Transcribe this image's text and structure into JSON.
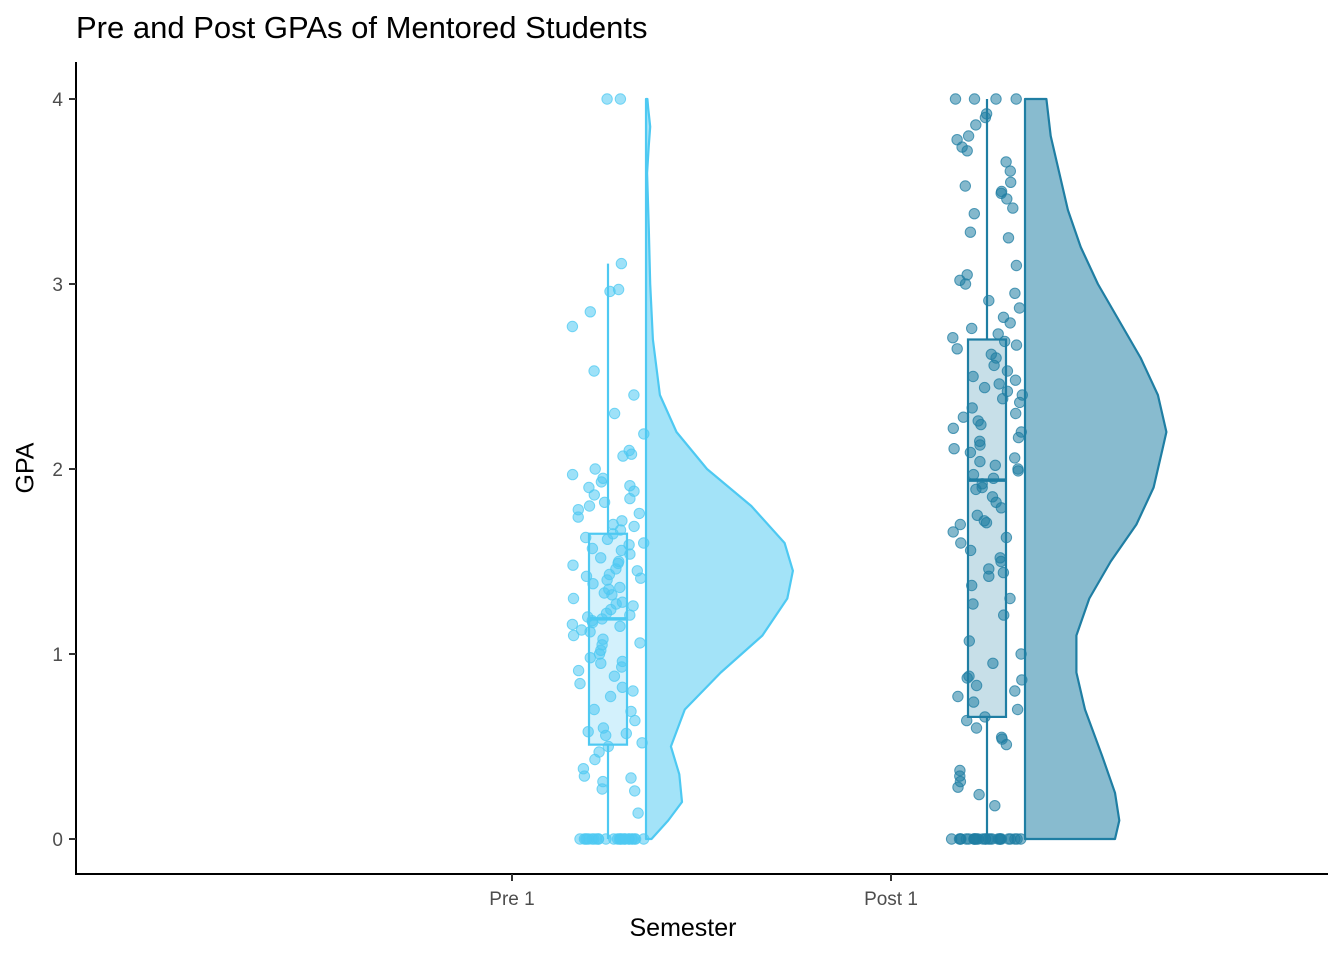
{
  "chart_data": {
    "type": "raincloud",
    "title": "Pre and Post GPAs of Mentored Students",
    "xlabel": "Semester",
    "ylabel": "GPA",
    "categories": [
      "Pre 1",
      "Post 1"
    ],
    "ylim": [
      -0.19,
      4.19
    ],
    "yticks": [
      0,
      1,
      2,
      3,
      4
    ],
    "grid": false,
    "legend": "none",
    "series": [
      {
        "category": "Pre 1",
        "color": "#4ec9f2",
        "fill": "#a3e3f8",
        "box": {
          "min": 0,
          "q1": 0.51,
          "median": 1.19,
          "q3": 1.65,
          "max": 3.11
        },
        "density": [
          [
            0,
            0.02
          ],
          [
            0.1,
            0.08
          ],
          [
            0.2,
            0.13
          ],
          [
            0.35,
            0.12
          ],
          [
            0.5,
            0.09
          ],
          [
            0.7,
            0.14
          ],
          [
            0.9,
            0.27
          ],
          [
            1.1,
            0.42
          ],
          [
            1.3,
            0.51
          ],
          [
            1.45,
            0.53
          ],
          [
            1.6,
            0.5
          ],
          [
            1.8,
            0.38
          ],
          [
            2,
            0.22
          ],
          [
            2.2,
            0.11
          ],
          [
            2.4,
            0.05
          ],
          [
            2.7,
            0.025
          ],
          [
            3,
            0.015
          ],
          [
            3.3,
            0.01
          ],
          [
            3.6,
            0.004
          ],
          [
            3.75,
            0.01
          ],
          [
            3.85,
            0.015
          ],
          [
            3.95,
            0.008
          ],
          [
            4,
            0.005
          ]
        ],
        "points": [
          0,
          0,
          0,
          0,
          0,
          0,
          0,
          0,
          0,
          0,
          0,
          0,
          0,
          0,
          0,
          0,
          0,
          0,
          0,
          0,
          0,
          0,
          0,
          0,
          0,
          0,
          0.14,
          0.26,
          0.27,
          0.31,
          0.33,
          0.34,
          0.38,
          0.43,
          0.47,
          0.5,
          0.52,
          0.56,
          0.57,
          0.58,
          0.6,
          0.64,
          0.69,
          0.7,
          0.77,
          0.8,
          0.82,
          0.84,
          0.88,
          0.91,
          0.93,
          0.95,
          0.96,
          0.98,
          1.0,
          1.02,
          1.05,
          1.06,
          1.08,
          1.1,
          1.12,
          1.13,
          1.15,
          1.16,
          1.17,
          1.18,
          1.19,
          1.2,
          1.21,
          1.22,
          1.24,
          1.26,
          1.27,
          1.28,
          1.3,
          1.32,
          1.33,
          1.35,
          1.36,
          1.38,
          1.4,
          1.41,
          1.42,
          1.43,
          1.45,
          1.46,
          1.48,
          1.49,
          1.5,
          1.52,
          1.54,
          1.56,
          1.57,
          1.59,
          1.6,
          1.62,
          1.63,
          1.65,
          1.67,
          1.69,
          1.7,
          1.72,
          1.74,
          1.76,
          1.78,
          1.8,
          1.82,
          1.84,
          1.86,
          1.88,
          1.9,
          1.91,
          1.93,
          1.95,
          1.97,
          2.0,
          2.07,
          2.08,
          2.1,
          2.19,
          2.3,
          2.4,
          2.53,
          2.77,
          2.85,
          2.96,
          2.97,
          3.11,
          4.0,
          4.0
        ]
      },
      {
        "category": "Post 1",
        "color": "#1f7ea3",
        "fill": "#88bbcf",
        "box": {
          "min": 0,
          "q1": 0.66,
          "median": 1.94,
          "q3": 2.7,
          "max": 4.0
        },
        "density": [
          [
            0,
            0.21
          ],
          [
            0.1,
            0.22
          ],
          [
            0.25,
            0.21
          ],
          [
            0.45,
            0.18
          ],
          [
            0.7,
            0.14
          ],
          [
            0.9,
            0.12
          ],
          [
            1.1,
            0.12
          ],
          [
            1.3,
            0.15
          ],
          [
            1.5,
            0.2
          ],
          [
            1.7,
            0.26
          ],
          [
            1.9,
            0.3
          ],
          [
            2.1,
            0.32
          ],
          [
            2.2,
            0.33
          ],
          [
            2.4,
            0.31
          ],
          [
            2.6,
            0.27
          ],
          [
            2.8,
            0.22
          ],
          [
            3.0,
            0.17
          ],
          [
            3.2,
            0.13
          ],
          [
            3.4,
            0.1
          ],
          [
            3.6,
            0.08
          ],
          [
            3.8,
            0.06
          ],
          [
            4.0,
            0.05
          ]
        ],
        "points": [
          0,
          0,
          0,
          0,
          0,
          0,
          0,
          0,
          0,
          0,
          0,
          0,
          0,
          0,
          0,
          0,
          0,
          0,
          0,
          0,
          0,
          0,
          0,
          0,
          0,
          0,
          0,
          0,
          0.18,
          0.24,
          0.28,
          0.31,
          0.34,
          0.37,
          0.51,
          0.54,
          0.55,
          0.6,
          0.64,
          0.66,
          0.7,
          0.74,
          0.77,
          0.8,
          0.83,
          0.86,
          0.87,
          0.88,
          0.95,
          1.0,
          1.07,
          1.21,
          1.27,
          1.3,
          1.37,
          1.42,
          1.44,
          1.46,
          1.5,
          1.52,
          1.56,
          1.6,
          1.63,
          1.66,
          1.7,
          1.71,
          1.72,
          1.75,
          1.79,
          1.82,
          1.85,
          1.89,
          1.9,
          1.92,
          1.95,
          1.97,
          1.99,
          2.0,
          2.02,
          2.04,
          2.06,
          2.09,
          2.11,
          2.13,
          2.15,
          2.17,
          2.2,
          2.22,
          2.24,
          2.26,
          2.28,
          2.3,
          2.33,
          2.36,
          2.38,
          2.4,
          2.42,
          2.44,
          2.46,
          2.48,
          2.5,
          2.53,
          2.56,
          2.6,
          2.62,
          2.65,
          2.67,
          2.69,
          2.71,
          2.73,
          2.76,
          2.79,
          2.82,
          2.87,
          2.91,
          2.95,
          3.0,
          3.02,
          3.05,
          3.1,
          3.25,
          3.28,
          3.38,
          3.41,
          3.46,
          3.49,
          3.5,
          3.53,
          3.55,
          3.61,
          3.66,
          3.72,
          3.74,
          3.78,
          3.8,
          3.86,
          3.9,
          3.92,
          4.0,
          4.0,
          4.0,
          4.0
        ]
      }
    ]
  }
}
